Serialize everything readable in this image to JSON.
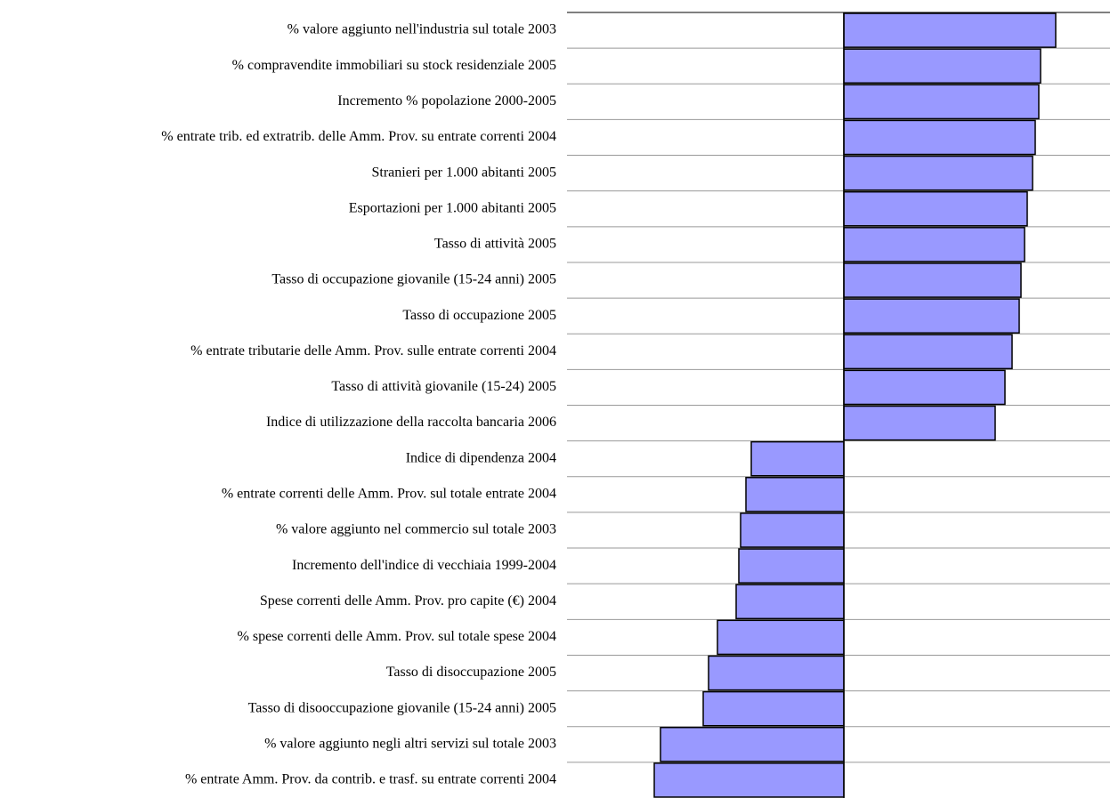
{
  "chart_data": {
    "type": "bar",
    "orientation": "horizontal",
    "categories": [
      "% valore aggiunto nell'industria sul totale 2003",
      "% compravendite immobiliari su stock residenziale 2005",
      "Incremento % popolazione 2000-2005",
      "% entrate trib. ed extratrib. delle Amm. Prov. su entrate correnti 2004",
      "Stranieri per 1.000 abitanti 2005",
      "Esportazioni per 1.000 abitanti  2005",
      "Tasso di attività 2005",
      "Tasso di occupazione giovanile (15-24 anni) 2005",
      "Tasso di occupazione 2005",
      "% entrate tributarie delle Amm. Prov. sulle entrate correnti 2004",
      "Tasso di attività giovanile (15-24) 2005",
      "Indice di utilizzazione della raccolta bancaria 2006",
      "Indice di dipendenza 2004",
      "% entrate correnti delle Amm. Prov. sul totale entrate 2004",
      "% valore aggiunto nel commercio sul totale 2003",
      "Incremento dell'indice di vecchiaia 1999-2004",
      "Spese correnti delle Amm. Prov. pro capite (€) 2004",
      "% spese correnti delle Amm. Prov. sul totale spese 2004",
      "Tasso di disoccupazione 2005",
      "Tasso di disooccupazione giovanile (15-24 anni) 2005",
      "% valore aggiunto negli altri servizi  sul totale 2003",
      "% entrate Amm. Prov. da contrib. e trasf. su entrate correnti 2004"
    ],
    "values": [
      2.38,
      2.21,
      2.19,
      2.15,
      2.12,
      2.06,
      2.03,
      1.99,
      1.97,
      1.89,
      1.81,
      1.7,
      -1.04,
      -1.1,
      -1.16,
      -1.18,
      -1.21,
      -1.42,
      -1.52,
      -1.58,
      -2.06,
      -2.13
    ],
    "color": "#9999ff",
    "xlim": [
      -3.11,
      2.99
    ],
    "grid": true
  }
}
